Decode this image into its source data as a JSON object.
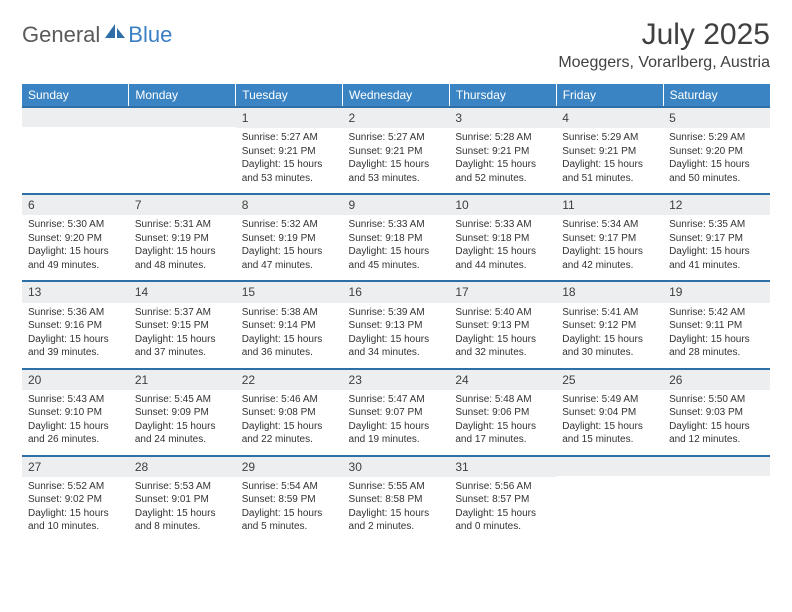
{
  "logo": {
    "general": "General",
    "blue": "Blue"
  },
  "title": "July 2025",
  "location": "Moeggers, Vorarlberg, Austria",
  "colors": {
    "header_bg": "#3b84c4",
    "week_border": "#2e6fa8",
    "daynum_bg": "#eceeef",
    "text": "#333333"
  },
  "dayNames": [
    "Sunday",
    "Monday",
    "Tuesday",
    "Wednesday",
    "Thursday",
    "Friday",
    "Saturday"
  ],
  "weeks": [
    [
      null,
      null,
      {
        "n": "1",
        "sr": "5:27 AM",
        "ss": "9:21 PM",
        "dl": "15 hours and 53 minutes."
      },
      {
        "n": "2",
        "sr": "5:27 AM",
        "ss": "9:21 PM",
        "dl": "15 hours and 53 minutes."
      },
      {
        "n": "3",
        "sr": "5:28 AM",
        "ss": "9:21 PM",
        "dl": "15 hours and 52 minutes."
      },
      {
        "n": "4",
        "sr": "5:29 AM",
        "ss": "9:21 PM",
        "dl": "15 hours and 51 minutes."
      },
      {
        "n": "5",
        "sr": "5:29 AM",
        "ss": "9:20 PM",
        "dl": "15 hours and 50 minutes."
      }
    ],
    [
      {
        "n": "6",
        "sr": "5:30 AM",
        "ss": "9:20 PM",
        "dl": "15 hours and 49 minutes."
      },
      {
        "n": "7",
        "sr": "5:31 AM",
        "ss": "9:19 PM",
        "dl": "15 hours and 48 minutes."
      },
      {
        "n": "8",
        "sr": "5:32 AM",
        "ss": "9:19 PM",
        "dl": "15 hours and 47 minutes."
      },
      {
        "n": "9",
        "sr": "5:33 AM",
        "ss": "9:18 PM",
        "dl": "15 hours and 45 minutes."
      },
      {
        "n": "10",
        "sr": "5:33 AM",
        "ss": "9:18 PM",
        "dl": "15 hours and 44 minutes."
      },
      {
        "n": "11",
        "sr": "5:34 AM",
        "ss": "9:17 PM",
        "dl": "15 hours and 42 minutes."
      },
      {
        "n": "12",
        "sr": "5:35 AM",
        "ss": "9:17 PM",
        "dl": "15 hours and 41 minutes."
      }
    ],
    [
      {
        "n": "13",
        "sr": "5:36 AM",
        "ss": "9:16 PM",
        "dl": "15 hours and 39 minutes."
      },
      {
        "n": "14",
        "sr": "5:37 AM",
        "ss": "9:15 PM",
        "dl": "15 hours and 37 minutes."
      },
      {
        "n": "15",
        "sr": "5:38 AM",
        "ss": "9:14 PM",
        "dl": "15 hours and 36 minutes."
      },
      {
        "n": "16",
        "sr": "5:39 AM",
        "ss": "9:13 PM",
        "dl": "15 hours and 34 minutes."
      },
      {
        "n": "17",
        "sr": "5:40 AM",
        "ss": "9:13 PM",
        "dl": "15 hours and 32 minutes."
      },
      {
        "n": "18",
        "sr": "5:41 AM",
        "ss": "9:12 PM",
        "dl": "15 hours and 30 minutes."
      },
      {
        "n": "19",
        "sr": "5:42 AM",
        "ss": "9:11 PM",
        "dl": "15 hours and 28 minutes."
      }
    ],
    [
      {
        "n": "20",
        "sr": "5:43 AM",
        "ss": "9:10 PM",
        "dl": "15 hours and 26 minutes."
      },
      {
        "n": "21",
        "sr": "5:45 AM",
        "ss": "9:09 PM",
        "dl": "15 hours and 24 minutes."
      },
      {
        "n": "22",
        "sr": "5:46 AM",
        "ss": "9:08 PM",
        "dl": "15 hours and 22 minutes."
      },
      {
        "n": "23",
        "sr": "5:47 AM",
        "ss": "9:07 PM",
        "dl": "15 hours and 19 minutes."
      },
      {
        "n": "24",
        "sr": "5:48 AM",
        "ss": "9:06 PM",
        "dl": "15 hours and 17 minutes."
      },
      {
        "n": "25",
        "sr": "5:49 AM",
        "ss": "9:04 PM",
        "dl": "15 hours and 15 minutes."
      },
      {
        "n": "26",
        "sr": "5:50 AM",
        "ss": "9:03 PM",
        "dl": "15 hours and 12 minutes."
      }
    ],
    [
      {
        "n": "27",
        "sr": "5:52 AM",
        "ss": "9:02 PM",
        "dl": "15 hours and 10 minutes."
      },
      {
        "n": "28",
        "sr": "5:53 AM",
        "ss": "9:01 PM",
        "dl": "15 hours and 8 minutes."
      },
      {
        "n": "29",
        "sr": "5:54 AM",
        "ss": "8:59 PM",
        "dl": "15 hours and 5 minutes."
      },
      {
        "n": "30",
        "sr": "5:55 AM",
        "ss": "8:58 PM",
        "dl": "15 hours and 2 minutes."
      },
      {
        "n": "31",
        "sr": "5:56 AM",
        "ss": "8:57 PM",
        "dl": "15 hours and 0 minutes."
      },
      null,
      null
    ]
  ],
  "labels": {
    "sunrise": "Sunrise:",
    "sunset": "Sunset:",
    "daylight": "Daylight:"
  }
}
